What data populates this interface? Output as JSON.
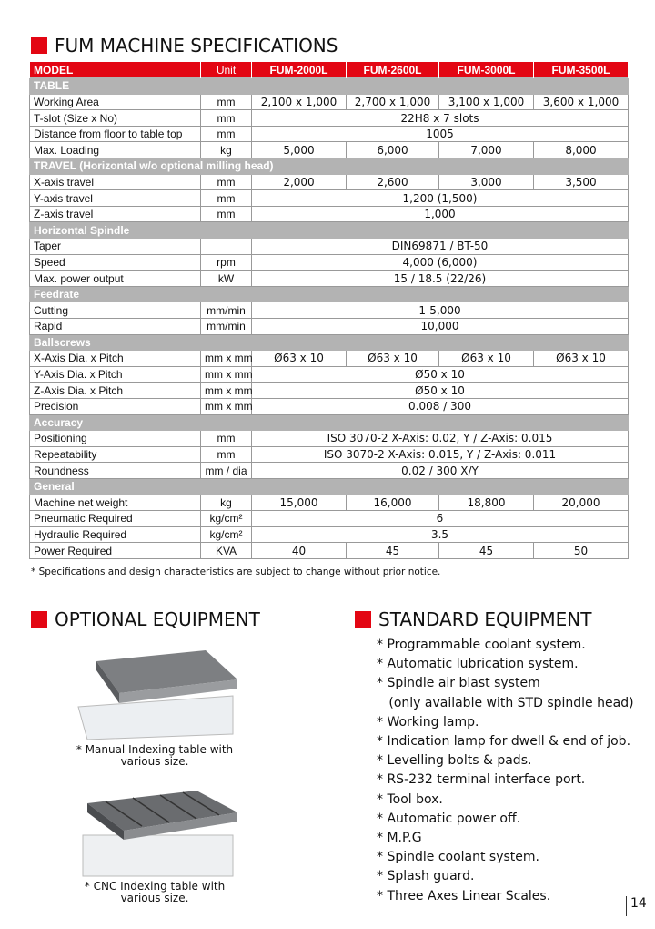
{
  "title": "FUM MACHINE SPECIFICATIONS",
  "header": {
    "model": "MODEL",
    "unit": "Unit",
    "models": [
      "FUM-2000L",
      "FUM-2600L",
      "FUM-3000L",
      "FUM-3500L"
    ]
  },
  "sections": [
    {
      "name": "TABLE",
      "rows": [
        {
          "label": "Working Area",
          "unit": "mm",
          "values": [
            "2,100 x 1,000",
            "2,700 x 1,000",
            "3,100 x 1,000",
            "3,600 x 1,000"
          ]
        },
        {
          "label": "T-slot (Size x No)",
          "unit": "mm",
          "values": [
            "22H8  x 7 slots"
          ]
        },
        {
          "label": "Distance from floor to table top",
          "unit": "mm",
          "values": [
            "1005"
          ]
        },
        {
          "label": "Max. Loading",
          "unit": "kg",
          "values": [
            "5,000",
            "6,000",
            "7,000",
            "8,000"
          ]
        }
      ]
    },
    {
      "name": "TRAVEL (Horizontal w/o optional milling head)",
      "rows": [
        {
          "label": "X-axis travel",
          "unit": "mm",
          "values": [
            "2,000",
            "2,600",
            "3,000",
            "3,500"
          ]
        },
        {
          "label": "Y-axis travel",
          "unit": "mm",
          "values": [
            "1,200 (1,500)"
          ]
        },
        {
          "label": "Z-axis travel",
          "unit": "mm",
          "values": [
            "1,000"
          ]
        }
      ]
    },
    {
      "name": "Horizontal Spindle",
      "rows": [
        {
          "label": "Taper",
          "unit": "",
          "values": [
            "DIN69871 / BT-50"
          ]
        },
        {
          "label": "Speed",
          "unit": "rpm",
          "values": [
            "4,000 (6,000)"
          ]
        },
        {
          "label": "Max. power output",
          "unit": "kW",
          "values": [
            "15 / 18.5 (22/26)"
          ]
        }
      ]
    },
    {
      "name": "Feedrate",
      "rows": [
        {
          "label": "Cutting",
          "unit": "mm/min",
          "values": [
            "1-5,000"
          ]
        },
        {
          "label": "Rapid",
          "unit": "mm/min",
          "values": [
            "10,000"
          ]
        }
      ]
    },
    {
      "name": "Ballscrews",
      "rows": [
        {
          "label": "X-Axis Dia. x Pitch",
          "unit": "mm x mm",
          "values": [
            "Ø63 x 10",
            "Ø63 x 10",
            "Ø63 x 10",
            "Ø63 x 10"
          ]
        },
        {
          "label": "Y-Axis Dia. x Pitch",
          "unit": "mm x mm",
          "values": [
            "Ø50 x 10"
          ]
        },
        {
          "label": "Z-Axis Dia. x Pitch",
          "unit": "mm x mm",
          "values": [
            "Ø50 x 10"
          ]
        },
        {
          "label": "Precision",
          "unit": "mm x mm",
          "values": [
            "0.008 / 300"
          ]
        }
      ]
    },
    {
      "name": "Accuracy",
      "rows": [
        {
          "label": "Positioning",
          "unit": "mm",
          "values": [
            "ISO 3070-2 X-Axis: 0.02, Y / Z-Axis: 0.015"
          ]
        },
        {
          "label": "Repeatability",
          "unit": "mm",
          "values": [
            "ISO 3070-2 X-Axis: 0.015, Y / Z-Axis: 0.011"
          ]
        },
        {
          "label": "Roundness",
          "unit": "mm / dia",
          "values": [
            "0.02 / 300 X/Y"
          ]
        }
      ]
    },
    {
      "name": "General",
      "rows": [
        {
          "label": "Machine net weight",
          "unit": "kg",
          "values": [
            "15,000",
            "16,000",
            "18,800",
            "20,000"
          ]
        },
        {
          "label": "Pneumatic Required",
          "unit": "kg/cm²",
          "values": [
            "6"
          ]
        },
        {
          "label": "Hydraulic Required",
          "unit": "kg/cm²",
          "values": [
            "3.5"
          ]
        },
        {
          "label": "Power Required",
          "unit": "KVA",
          "values": [
            "40",
            "45",
            "45",
            "50"
          ]
        }
      ]
    }
  ],
  "note": "* Specifications and design characteristics are subject to change without prior notice.",
  "optional": {
    "title": "OPTIONAL EQUIPMENT",
    "captions": [
      "* Manual Indexing table with\nvarious size.",
      "* CNC Indexing table with\nvarious size."
    ]
  },
  "standard": {
    "title": "STANDARD EQUIPMENT",
    "items": [
      "* Programmable coolant system.",
      "* Automatic lubrication system.",
      "* Spindle air blast system",
      "   (only available with STD spindle head)",
      "* Working lamp.",
      "* Indication lamp for dwell & end of job.",
      "* Levelling bolts & pads.",
      "* RS-232 terminal interface port.",
      "* Tool box.",
      "* Automatic power off.",
      "* M.P.G",
      "* Spindle coolant system.",
      "* Splash guard.",
      "* Three Axes Linear Scales."
    ]
  },
  "page_number": "14",
  "colors": {
    "accent": "#e30613",
    "section": "#b3b3b3"
  }
}
